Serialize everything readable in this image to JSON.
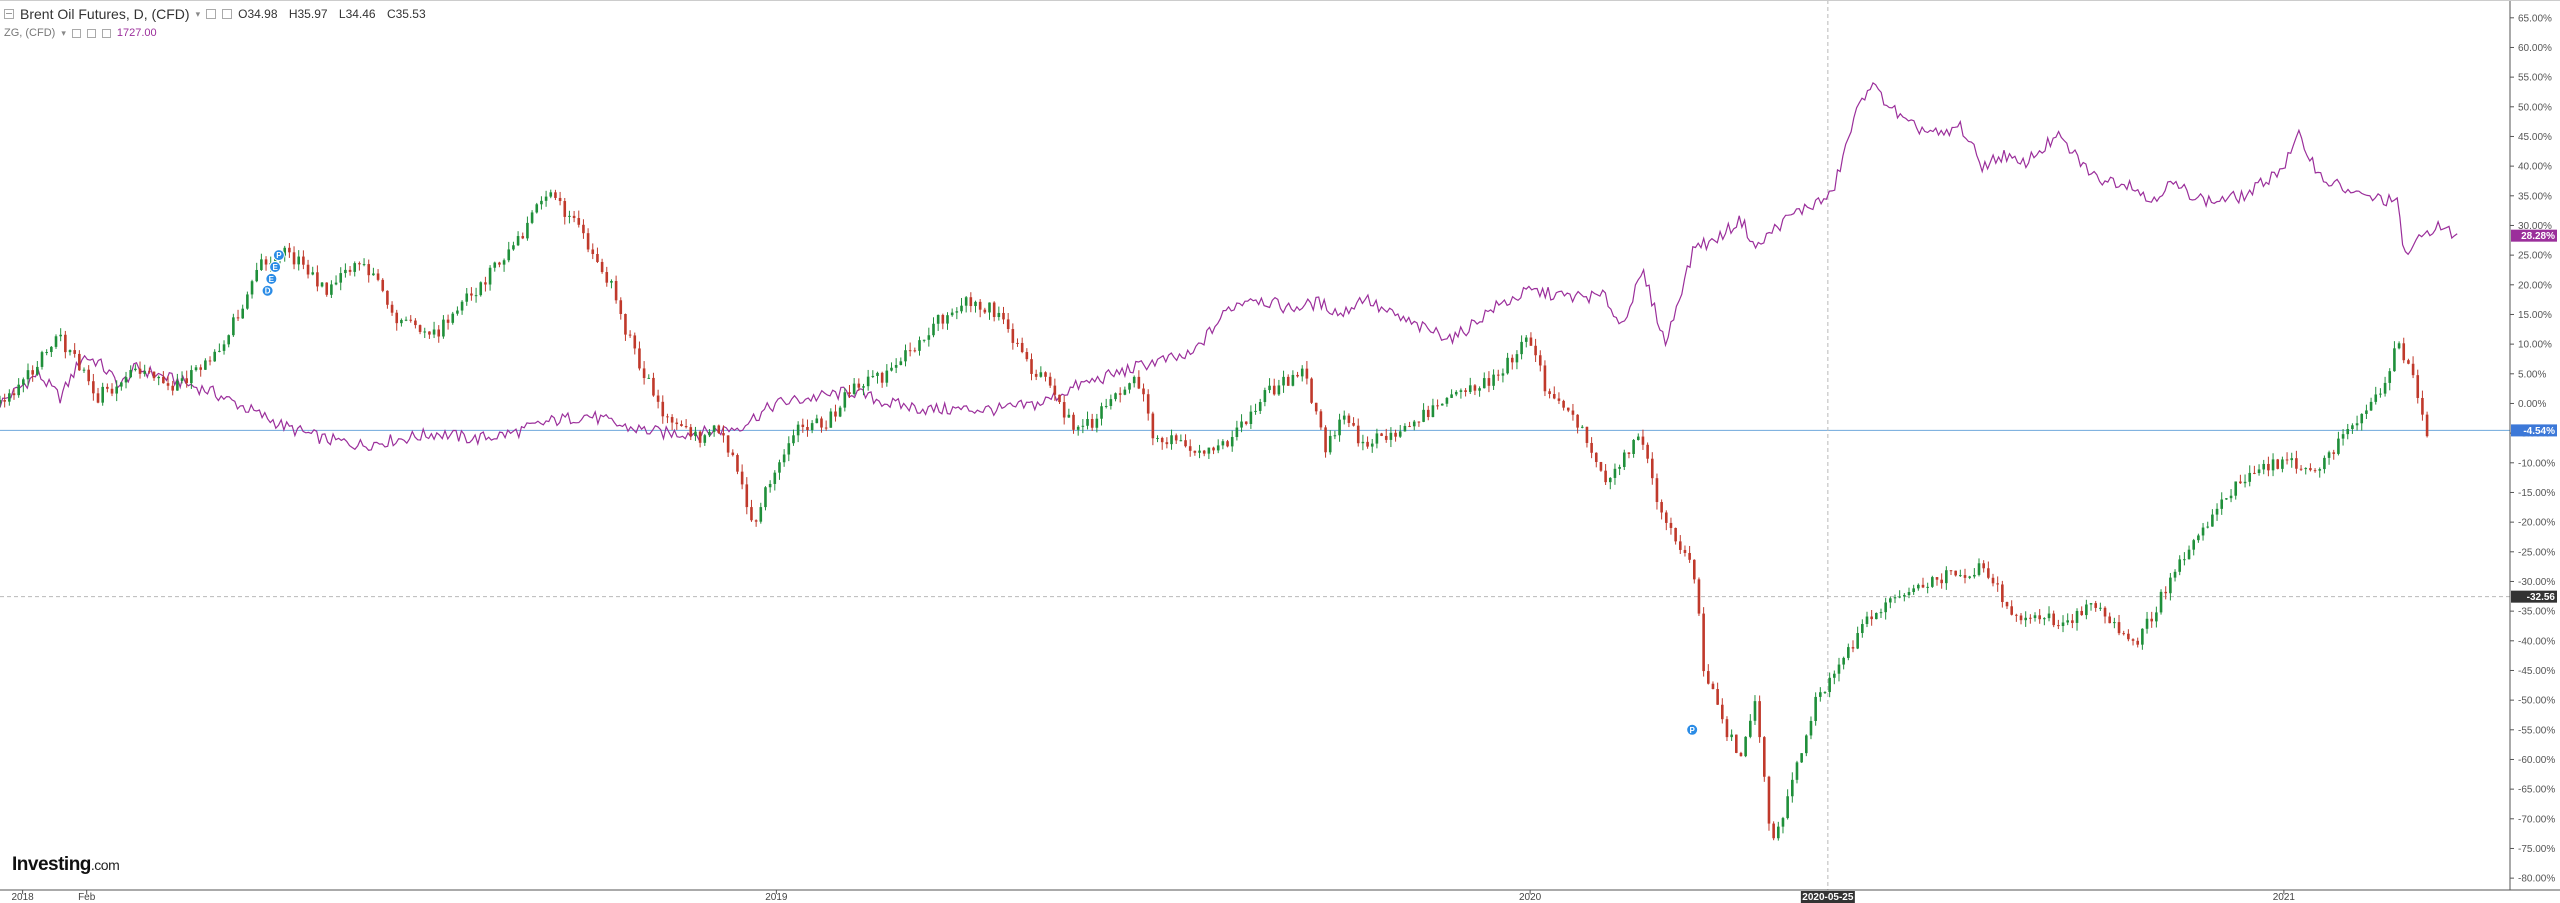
{
  "header": {
    "title": "Brent Oil Futures, D, (CFD)",
    "open": "O34.98",
    "high": "H35.97",
    "low": "L34.46",
    "close": "C35.53",
    "compare_symbol": "ZG, (CFD)",
    "compare_value": "1727.00"
  },
  "logo": {
    "brand": "Investing",
    "suffix": ".com"
  },
  "colors": {
    "up": "#1f8f3a",
    "down": "#c0392b",
    "compare": "#9b2f9b",
    "zero_line": "#6fa8dc",
    "price_label": "#3c78d8",
    "dashed": "#b9b9b9"
  },
  "icons": [
    "collapse-icon",
    "settings-icon",
    "close-icon",
    "event-marker-icon"
  ],
  "chart_data": {
    "type": "line",
    "title": "Brent Oil Futures, D, (CFD)",
    "xlabel": "",
    "ylabel": "",
    "ylim": [
      -82,
      68
    ],
    "y_unit": "%",
    "y_ticks": [
      "65.00%",
      "60.00%",
      "55.00%",
      "50.00%",
      "45.00%",
      "40.00%",
      "35.00%",
      "30.00%",
      "25.00%",
      "20.00%",
      "15.00%",
      "10.00%",
      "5.00%",
      "0.00%",
      "-5.00%",
      "-10.00%",
      "-15.00%",
      "-20.00%",
      "-25.00%",
      "-30.00%",
      "-35.00%",
      "-40.00%",
      "-45.00%",
      "-50.00%",
      "-55.00%",
      "-60.00%",
      "-65.00%",
      "-70.00%",
      "-75.00%",
      "-80.00%"
    ],
    "y_tick_values": [
      65,
      60,
      55,
      50,
      45,
      40,
      35,
      30,
      25,
      20,
      15,
      10,
      5,
      0,
      -5,
      -10,
      -15,
      -20,
      -25,
      -30,
      -35,
      -40,
      -45,
      -50,
      -55,
      -60,
      -65,
      -70,
      -75,
      -80
    ],
    "x_ticks": [
      {
        "label": "2018",
        "t": 2018.0
      },
      {
        "label": "Feb",
        "t": 2018.085
      },
      {
        "label": "2019",
        "t": 2019.0
      },
      {
        "label": "2020",
        "t": 2020.0
      },
      {
        "label": "2021",
        "t": 2021.0
      }
    ],
    "xlim": [
      2017.97,
      2021.3
    ],
    "crosshair": {
      "x_label": "2020-05-25",
      "t": 2020.395,
      "y_label": "-32.56",
      "y": -32.56
    },
    "last_labels": {
      "compare": "28.28%",
      "main": "-4.54%"
    },
    "zero_line_value": -4.54,
    "series": [
      {
        "name": "Brent Oil Futures, D, (CFD)",
        "style": "candles",
        "t": [
          2017.97,
          2018.05,
          2018.1,
          2018.15,
          2018.2,
          2018.27,
          2018.32,
          2018.35,
          2018.4,
          2018.45,
          2018.5,
          2018.55,
          2018.6,
          2018.65,
          2018.7,
          2018.75,
          2018.78,
          2018.8,
          2018.85,
          2018.88,
          2018.9,
          2018.92,
          2018.95,
          2018.97,
          2019.0,
          2019.03,
          2019.07,
          2019.1,
          2019.15,
          2019.2,
          2019.25,
          2019.3,
          2019.33,
          2019.36,
          2019.4,
          2019.42,
          2019.45,
          2019.48,
          2019.5,
          2019.55,
          2019.6,
          2019.65,
          2019.7,
          2019.73,
          2019.75,
          2019.78,
          2019.8,
          2019.85,
          2019.9,
          2019.95,
          2020.0,
          2020.02,
          2020.05,
          2020.07,
          2020.1,
          2020.13,
          2020.15,
          2020.17,
          2020.2,
          2020.22,
          2020.23,
          2020.26,
          2020.28,
          2020.3,
          2020.32,
          2020.34,
          2020.36,
          2020.38,
          2020.4,
          2020.45,
          2020.5,
          2020.55,
          2020.6,
          2020.65,
          2020.68,
          2020.7,
          2020.75,
          2020.8,
          2020.85,
          2020.87,
          2020.9,
          2020.95,
          2021.0,
          2021.05,
          2021.1,
          2021.13,
          2021.15,
          2021.17,
          2021.19
        ],
        "values": [
          0,
          11,
          1,
          6,
          2,
          11,
          24,
          26,
          19,
          24,
          14,
          12,
          19,
          26,
          36,
          27,
          20,
          12,
          -2,
          -5,
          -6,
          -3,
          -12,
          -20,
          -10,
          -4,
          -3,
          3,
          5,
          12,
          18,
          15,
          7,
          3,
          -5,
          -3,
          1,
          4,
          -5,
          -8,
          -6,
          2,
          5,
          -8,
          -2,
          -7,
          -6,
          -3,
          2,
          4,
          11,
          3,
          -1,
          -4,
          -13,
          -8,
          -6,
          -17,
          -24,
          -29,
          -45,
          -55,
          -60,
          -50,
          -75,
          -68,
          -58,
          -50,
          -46,
          -36,
          -32,
          -29,
          -28,
          -37,
          -35,
          -38,
          -34,
          -41,
          -30,
          -25,
          -20,
          -12,
          -10,
          -11,
          -2,
          2,
          10,
          5,
          -4.54
        ]
      },
      {
        "name": "ZG, (CFD)",
        "style": "line",
        "t": [
          2017.97,
          2018.02,
          2018.05,
          2018.08,
          2018.1,
          2018.13,
          2018.15,
          2018.2,
          2018.25,
          2018.3,
          2018.35,
          2018.4,
          2018.45,
          2018.5,
          2018.55,
          2018.6,
          2018.65,
          2018.7,
          2018.75,
          2018.8,
          2018.85,
          2018.9,
          2018.95,
          2019.0,
          2019.05,
          2019.1,
          2019.15,
          2019.2,
          2019.25,
          2019.3,
          2019.35,
          2019.4,
          2019.45,
          2019.5,
          2019.55,
          2019.6,
          2019.63,
          2019.68,
          2019.72,
          2019.75,
          2019.78,
          2019.8,
          2019.85,
          2019.9,
          2019.95,
          2020.0,
          2020.05,
          2020.1,
          2020.12,
          2020.15,
          2020.18,
          2020.2,
          2020.22,
          2020.24,
          2020.25,
          2020.27,
          2020.28,
          2020.3,
          2020.32,
          2020.35,
          2020.4,
          2020.43,
          2020.45,
          2020.5,
          2020.55,
          2020.57,
          2020.6,
          2020.63,
          2020.65,
          2020.7,
          2020.75,
          2020.8,
          2020.82,
          2020.85,
          2020.9,
          2020.95,
          2021.0,
          2021.02,
          2021.05,
          2021.1,
          2021.15,
          2021.16,
          2021.2,
          2021.23
        ],
        "values": [
          0,
          5,
          1,
          8,
          7,
          3,
          6,
          4,
          2,
          -1,
          -4,
          -6,
          -7,
          -6,
          -5,
          -6,
          -5,
          -3,
          -2,
          -4,
          -5,
          -5,
          -4,
          0,
          1,
          2,
          0,
          -1,
          -1,
          -1,
          0,
          3,
          5,
          7,
          8,
          16,
          18,
          16,
          17,
          15,
          18,
          16,
          13,
          11,
          16,
          19,
          18,
          18,
          13,
          22,
          10,
          19,
          27,
          27,
          28,
          30,
          31,
          26,
          29,
          32,
          35,
          48,
          54,
          47,
          45,
          47,
          40,
          42,
          40,
          45,
          38,
          37,
          34,
          37,
          34,
          35,
          40,
          45,
          38,
          35,
          34,
          25,
          30,
          28.28
        ]
      }
    ],
    "markers": [
      {
        "label": "P",
        "t": 2018.34,
        "y": 25
      },
      {
        "label": "E",
        "t": 2018.335,
        "y": 23
      },
      {
        "label": "E",
        "t": 2018.33,
        "y": 21
      },
      {
        "label": "D",
        "t": 2018.325,
        "y": 19
      },
      {
        "label": "P",
        "t": 2020.215,
        "y": -55
      }
    ]
  }
}
